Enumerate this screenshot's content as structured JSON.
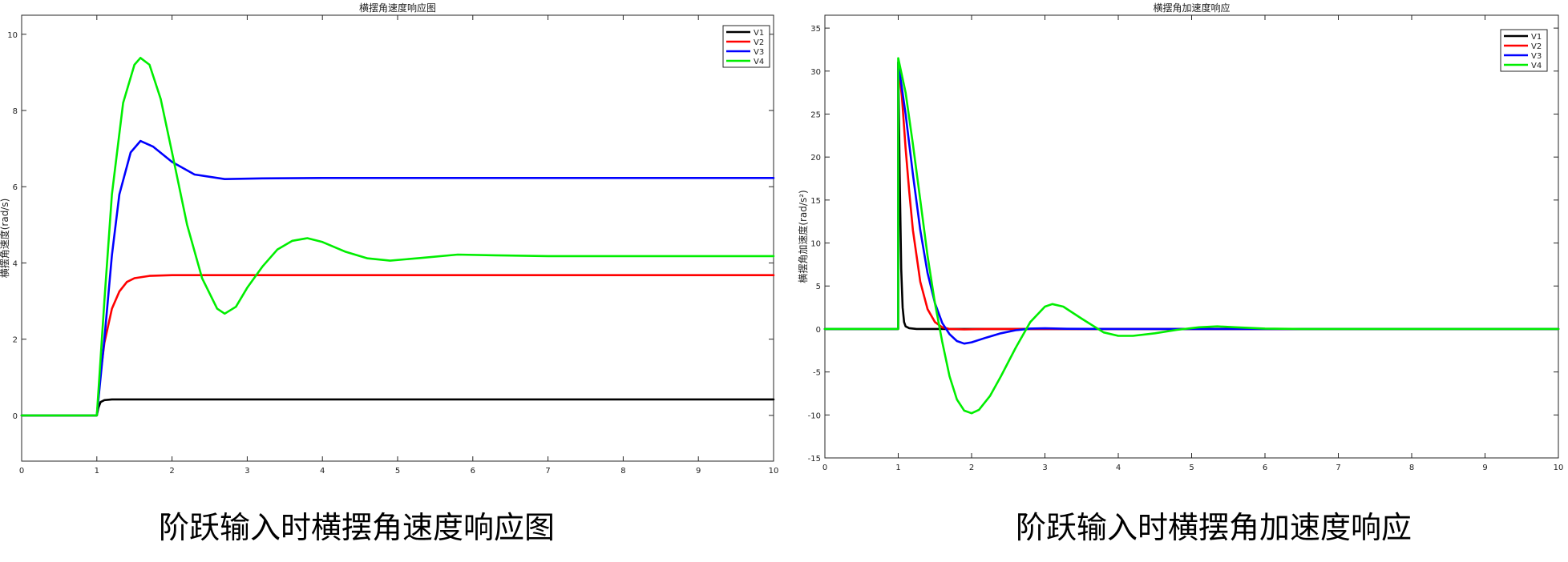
{
  "charts": [
    {
      "caption": "阶跃输入时横摆角速度响应图",
      "chart_data": {
        "type": "line",
        "title": "横摆角速度响应图",
        "xlabel": "",
        "ylabel": "横摆角速度(rad/s)",
        "xlim": [
          0,
          10
        ],
        "ylim": [
          -1.2,
          10.5
        ],
        "xticks": [
          0,
          1,
          2,
          3,
          4,
          5,
          6,
          7,
          8,
          9,
          10
        ],
        "yticks": [
          0,
          2,
          4,
          6,
          8,
          10
        ],
        "grid": false,
        "legend_position": "top-right",
        "series": [
          {
            "name": "V1",
            "color": "#000000",
            "x": [
              0,
              1,
              1.02,
              1.05,
              1.1,
              1.2,
              2,
              5,
              10
            ],
            "y": [
              0,
              0,
              0.2,
              0.35,
              0.4,
              0.42,
              0.42,
              0.42,
              0.42
            ]
          },
          {
            "name": "V2",
            "color": "#ff0000",
            "x": [
              0,
              1,
              1.05,
              1.1,
              1.2,
              1.3,
              1.4,
              1.5,
              1.7,
              2.0,
              2.5,
              5,
              10
            ],
            "y": [
              0,
              0,
              1.1,
              1.9,
              2.8,
              3.25,
              3.5,
              3.6,
              3.66,
              3.68,
              3.68,
              3.68,
              3.68
            ]
          },
          {
            "name": "V3",
            "color": "#0000ff",
            "x": [
              0,
              1,
              1.1,
              1.2,
              1.3,
              1.45,
              1.58,
              1.75,
              2.0,
              2.3,
              2.7,
              3.2,
              4.0,
              6,
              10
            ],
            "y": [
              0,
              0,
              2.0,
              4.2,
              5.8,
              6.9,
              7.2,
              7.05,
              6.65,
              6.32,
              6.2,
              6.22,
              6.23,
              6.23,
              6.23
            ]
          },
          {
            "name": "V4",
            "color": "#00ee00",
            "x": [
              0,
              1,
              1.1,
              1.2,
              1.35,
              1.5,
              1.58,
              1.7,
              1.85,
              2.0,
              2.2,
              2.4,
              2.6,
              2.7,
              2.85,
              3.0,
              3.2,
              3.4,
              3.6,
              3.8,
              4.0,
              4.3,
              4.6,
              4.9,
              5.3,
              5.8,
              6.3,
              7.0,
              10
            ],
            "y": [
              0,
              0,
              3.0,
              5.8,
              8.2,
              9.2,
              9.38,
              9.2,
              8.3,
              6.9,
              5.0,
              3.6,
              2.8,
              2.67,
              2.85,
              3.35,
              3.9,
              4.35,
              4.58,
              4.65,
              4.55,
              4.3,
              4.12,
              4.06,
              4.13,
              4.22,
              4.2,
              4.18,
              4.18
            ]
          }
        ]
      }
    },
    {
      "caption": "阶跃输入时横摆角加速度响应",
      "chart_data": {
        "type": "line",
        "title": "横摆角加速度响应",
        "xlabel": "",
        "ylabel": "横摆角加速度(rad/s²)",
        "xlim": [
          0,
          10
        ],
        "ylim": [
          -15,
          36.5
        ],
        "xticks": [
          0,
          1,
          2,
          3,
          4,
          5,
          6,
          7,
          8,
          9,
          10
        ],
        "yticks": [
          -15,
          -10,
          -5,
          0,
          5,
          10,
          15,
          20,
          25,
          30,
          35
        ],
        "grid": false,
        "legend_position": "top-right",
        "series": [
          {
            "name": "V1",
            "color": "#000000",
            "x": [
              0,
              0.999,
              1.0,
              1.02,
              1.04,
              1.06,
              1.08,
              1.1,
              1.15,
              1.25,
              2,
              10
            ],
            "y": [
              0,
              0,
              31,
              18,
              7,
              2.5,
              0.8,
              0.3,
              0.1,
              0,
              0,
              0
            ]
          },
          {
            "name": "V2",
            "color": "#ff0000",
            "x": [
              0,
              0.999,
              1.0,
              1.05,
              1.1,
              1.15,
              1.2,
              1.3,
              1.4,
              1.5,
              1.6,
              1.7,
              1.9,
              2.2,
              10
            ],
            "y": [
              0,
              0,
              31,
              27,
              21,
              16,
              11.5,
              5.5,
              2.3,
              0.8,
              0.2,
              0.0,
              -0.05,
              0,
              0
            ]
          },
          {
            "name": "V3",
            "color": "#0000ff",
            "x": [
              0,
              0.999,
              1.0,
              1.1,
              1.2,
              1.3,
              1.4,
              1.5,
              1.6,
              1.7,
              1.8,
              1.9,
              2.0,
              2.2,
              2.4,
              2.6,
              2.8,
              3.0,
              3.3,
              4,
              10
            ],
            "y": [
              0,
              0,
              31,
              25,
              18,
              11.5,
              6.5,
              3.0,
              0.7,
              -0.6,
              -1.4,
              -1.7,
              -1.55,
              -1.0,
              -0.5,
              -0.15,
              0.05,
              0.08,
              0.02,
              0,
              0
            ]
          },
          {
            "name": "V4",
            "color": "#00ee00",
            "x": [
              0,
              0.999,
              1.0,
              1.1,
              1.2,
              1.3,
              1.4,
              1.5,
              1.6,
              1.7,
              1.8,
              1.9,
              2.0,
              2.1,
              2.25,
              2.4,
              2.6,
              2.8,
              3.0,
              3.1,
              3.25,
              3.5,
              3.8,
              4.0,
              4.2,
              4.5,
              4.8,
              5.1,
              5.35,
              5.6,
              6.0,
              6.5,
              10
            ],
            "y": [
              0,
              0,
              31.5,
              27.5,
              21.5,
              15.0,
              8.5,
              3.0,
              -1.5,
              -5.5,
              -8.2,
              -9.5,
              -9.8,
              -9.4,
              -7.8,
              -5.5,
              -2.2,
              0.8,
              2.6,
              2.9,
              2.6,
              1.2,
              -0.4,
              -0.8,
              -0.8,
              -0.5,
              -0.1,
              0.2,
              0.3,
              0.2,
              0.05,
              0,
              0
            ]
          }
        ]
      }
    }
  ]
}
